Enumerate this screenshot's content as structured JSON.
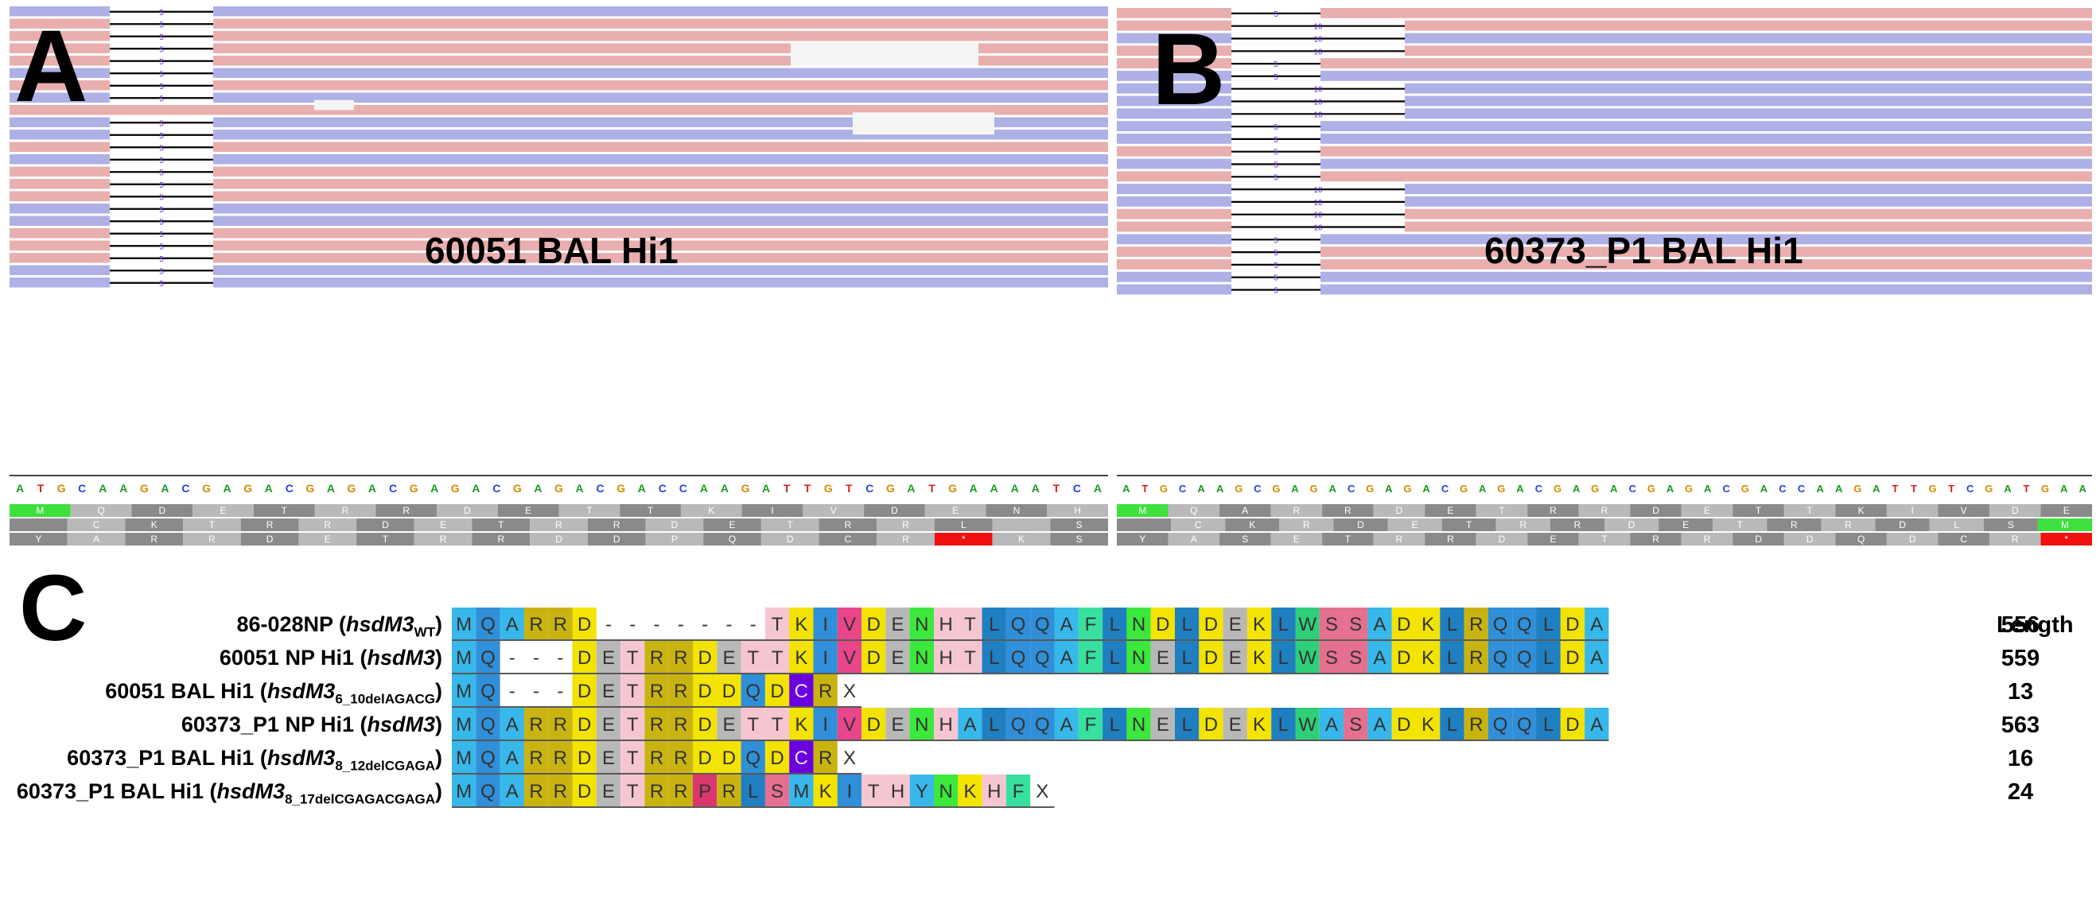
{
  "panel_a": {
    "letter": "A",
    "title": "60051 BAL Hi1",
    "ins_label": "5",
    "dna": "ATGCAAGACGAGACGAGACGAGACGAGACGACCAAGATTGTCGATGAAAATCA",
    "frame1": [
      "M",
      "Q",
      "D",
      "E",
      "T",
      "R",
      "R",
      "D",
      "E",
      "T",
      "T",
      "K",
      "I",
      "V",
      "D",
      "E",
      "N",
      "H"
    ],
    "frame2": [
      "",
      "C",
      "K",
      "T",
      "R",
      "R",
      "D",
      "E",
      "T",
      "R",
      "R",
      "D",
      "E",
      "T",
      "R",
      "R",
      "L",
      "",
      "S"
    ],
    "frame3": [
      "Y",
      "A",
      "R",
      "R",
      "D",
      "E",
      "T",
      "R",
      "R",
      "D",
      "D",
      "P",
      "Q",
      "D",
      "C",
      "R",
      "*",
      "K",
      "S"
    ]
  },
  "panel_b": {
    "letter": "B",
    "title": "60373_P1 BAL Hi1",
    "ins_labels": [
      "5",
      "10"
    ],
    "dna": "ATGCAAGCGAGACGAGACGAGACGAGACGAGACGACCAAGATTGTCGATGAA",
    "frame1": [
      "M",
      "Q",
      "A",
      "R",
      "R",
      "D",
      "E",
      "T",
      "R",
      "R",
      "D",
      "E",
      "T",
      "T",
      "K",
      "I",
      "V",
      "D",
      "E"
    ],
    "frame2": [
      "",
      "C",
      "K",
      "R",
      "D",
      "E",
      "T",
      "R",
      "R",
      "D",
      "E",
      "T",
      "R",
      "R",
      "D",
      "L",
      "S",
      "M"
    ],
    "frame3": [
      "Y",
      "A",
      "S",
      "E",
      "T",
      "R",
      "R",
      "D",
      "E",
      "T",
      "R",
      "R",
      "D",
      "D",
      "Q",
      "D",
      "C",
      "R",
      "*"
    ]
  },
  "panel_c": {
    "letter": "C",
    "length_header": "Length",
    "rows": [
      {
        "name": "86-028NP (",
        "italic": "hsdM3",
        "sub": "WT",
        "tail": ")",
        "length": "556",
        "seq": [
          "M",
          "Q",
          "A",
          "R",
          "R",
          "D",
          "-",
          "-",
          "-",
          "-",
          "-",
          "-",
          "-",
          "T",
          "K",
          "I",
          "V",
          "D",
          "E",
          "N",
          "H",
          "T",
          "L",
          "Q",
          "Q",
          "A",
          "F",
          "L",
          "N",
          "D",
          "L",
          "D",
          "E",
          "K",
          "L",
          "W",
          "S",
          "S",
          "A",
          "D",
          "K",
          "L",
          "R",
          "Q",
          "Q",
          "L",
          "D",
          "A"
        ]
      },
      {
        "name": "60051 NP Hi1 (",
        "italic": "hsdM3",
        "sub": "",
        "tail": ")",
        "length": "559",
        "seq": [
          "M",
          "Q",
          "-",
          "-",
          "-",
          "D",
          "E",
          "T",
          "R",
          "R",
          "D",
          "E",
          "T",
          "T",
          "K",
          "I",
          "V",
          "D",
          "E",
          "N",
          "H",
          "T",
          "L",
          "Q",
          "Q",
          "A",
          "F",
          "L",
          "N",
          "E",
          "L",
          "D",
          "E",
          "K",
          "L",
          "W",
          "S",
          "S",
          "A",
          "D",
          "K",
          "L",
          "R",
          "Q",
          "Q",
          "L",
          "D",
          "A"
        ]
      },
      {
        "name": "60051 BAL Hi1 (",
        "italic": "hsdM3",
        "sub": "6_10delAGACG",
        "tail": ")",
        "length": "13",
        "seq": [
          "M",
          "Q",
          "-",
          "-",
          "-",
          "D",
          "E",
          "T",
          "R",
          "R",
          "D",
          "D",
          "Q",
          "D",
          "C",
          "R",
          "X"
        ]
      },
      {
        "name": "60373_P1 NP Hi1 (",
        "italic": "hsdM3",
        "sub": "",
        "tail": ")",
        "length": "563",
        "seq": [
          "M",
          "Q",
          "A",
          "R",
          "R",
          "D",
          "E",
          "T",
          "R",
          "R",
          "D",
          "E",
          "T",
          "T",
          "K",
          "I",
          "V",
          "D",
          "E",
          "N",
          "H",
          "A",
          "L",
          "Q",
          "Q",
          "A",
          "F",
          "L",
          "N",
          "E",
          "L",
          "D",
          "E",
          "K",
          "L",
          "W",
          "A",
          "S",
          "A",
          "D",
          "K",
          "L",
          "R",
          "Q",
          "Q",
          "L",
          "D",
          "A"
        ]
      },
      {
        "name": "60373_P1 BAL Hi1 (",
        "italic": "hsdM3",
        "sub": "8_12delCGAGA",
        "tail": ")",
        "length": "16",
        "seq": [
          "M",
          "Q",
          "A",
          "R",
          "R",
          "D",
          "E",
          "T",
          "R",
          "R",
          "D",
          "D",
          "Q",
          "D",
          "C",
          "R",
          "X"
        ]
      },
      {
        "name": "60373_P1 BAL Hi1 (",
        "italic": "hsdM3",
        "sub": "8_17delCGAGACGAGA",
        "tail": ")",
        "length": "24",
        "seq": [
          "M",
          "Q",
          "A",
          "R",
          "R",
          "D",
          "E",
          "T",
          "R",
          "R",
          "P",
          "R",
          "L",
          "S",
          "M",
          "K",
          "I",
          "T",
          "H",
          "Y",
          "N",
          "K",
          "H",
          "F",
          "X"
        ]
      }
    ]
  },
  "colors": {
    "read_blue": "#aeb0e6",
    "read_pink": "#e9aeae",
    "nt_A": "#1a9c1a",
    "nt_C": "#2a42d8",
    "nt_G": "#d88a00",
    "nt_T": "#d81e1e",
    "start_green": "#3ee03e",
    "stop_red": "#f01010"
  }
}
